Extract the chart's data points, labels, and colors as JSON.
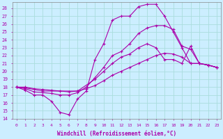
{
  "xlabel": "Windchill (Refroidissement éolien,°C)",
  "bg_color": "#cceeff",
  "line_color": "#aa00aa",
  "grid_color": "#aadddd",
  "xlim": [
    -0.5,
    23.5
  ],
  "ylim": [
    14,
    28.8
  ],
  "yticks": [
    14,
    15,
    16,
    17,
    18,
    19,
    20,
    21,
    22,
    23,
    24,
    25,
    26,
    27,
    28
  ],
  "xticks": [
    0,
    1,
    2,
    3,
    4,
    5,
    6,
    7,
    8,
    9,
    10,
    11,
    12,
    13,
    14,
    15,
    16,
    17,
    18,
    19,
    20,
    21,
    22,
    23
  ],
  "series": [
    {
      "x": [
        0,
        1,
        2,
        3,
        4,
        5,
        6,
        7,
        8,
        9,
        10,
        11,
        12,
        13,
        14,
        15,
        16,
        17,
        18,
        19,
        20,
        21,
        22,
        23
      ],
      "y": [
        18.0,
        17.6,
        17.0,
        17.0,
        16.2,
        14.8,
        14.5,
        16.5,
        17.5,
        21.5,
        23.5,
        26.5,
        27.0,
        27.0,
        28.2,
        28.5,
        28.5,
        27.0,
        25.0,
        23.0,
        21.0,
        21.0,
        20.8,
        20.5
      ]
    },
    {
      "x": [
        0,
        1,
        2,
        3,
        4,
        5,
        6,
        7,
        8,
        9,
        10,
        11,
        12,
        13,
        14,
        15,
        16,
        17,
        18,
        19,
        20,
        21,
        22,
        23
      ],
      "y": [
        18.0,
        17.8,
        17.4,
        17.3,
        17.2,
        17.0,
        17.0,
        17.3,
        18.0,
        19.2,
        20.5,
        22.0,
        22.5,
        23.5,
        24.8,
        25.5,
        25.8,
        25.8,
        25.3,
        23.2,
        22.8,
        21.0,
        20.8,
        20.5
      ]
    },
    {
      "x": [
        0,
        1,
        3,
        7,
        9,
        10,
        11,
        12,
        13,
        14,
        15,
        16,
        17,
        18,
        19,
        20,
        21,
        22,
        23
      ],
      "y": [
        18.0,
        17.9,
        17.5,
        17.5,
        19.0,
        20.0,
        21.0,
        21.8,
        22.2,
        23.0,
        23.5,
        23.0,
        21.5,
        21.5,
        21.0,
        23.2,
        21.0,
        20.8,
        20.5
      ]
    },
    {
      "x": [
        0,
        1,
        2,
        3,
        4,
        5,
        6,
        7,
        8,
        9,
        10,
        11,
        12,
        13,
        14,
        15,
        16,
        17,
        18,
        19,
        20,
        21,
        22,
        23
      ],
      "y": [
        18.0,
        18.0,
        17.8,
        17.7,
        17.6,
        17.5,
        17.4,
        17.5,
        17.8,
        18.2,
        18.8,
        19.5,
        20.0,
        20.5,
        21.0,
        21.5,
        22.0,
        22.3,
        22.2,
        21.8,
        21.0,
        21.0,
        20.8,
        20.5
      ]
    }
  ]
}
